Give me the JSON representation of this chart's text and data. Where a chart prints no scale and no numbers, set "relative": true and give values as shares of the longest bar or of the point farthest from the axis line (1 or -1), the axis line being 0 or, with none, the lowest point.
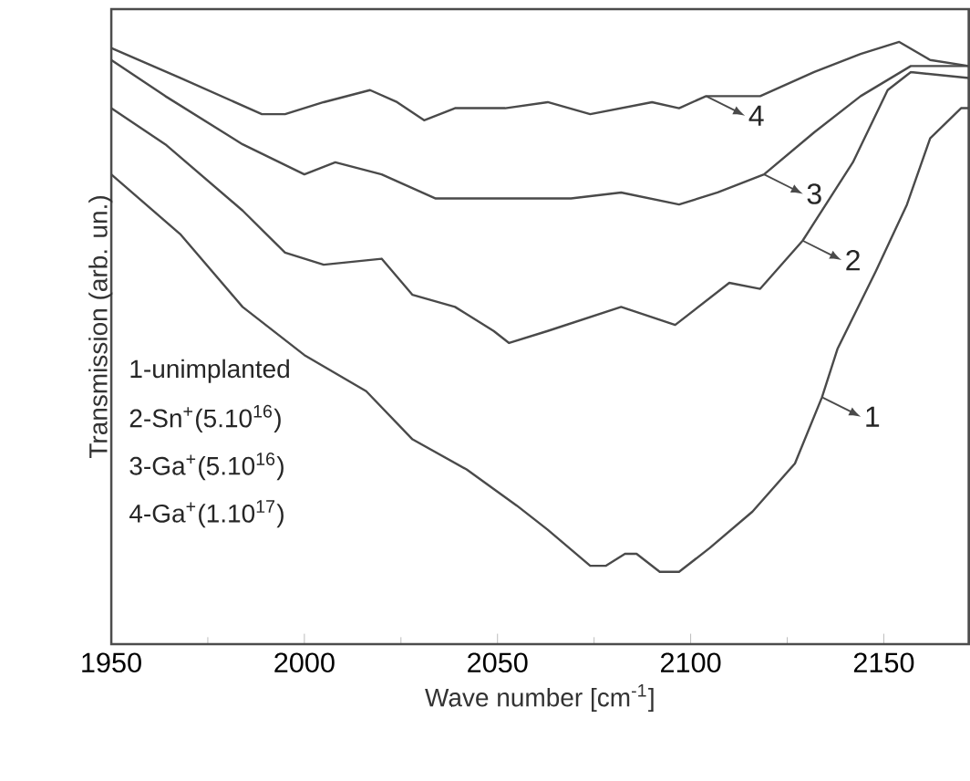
{
  "chart_data": {
    "type": "line",
    "relative": true,
    "xlabel": "Wave number [cm$^{-1}$]",
    "ylabel": "Transmission (arb. un.)",
    "xlim": [
      1950,
      2172
    ],
    "xticks": [
      1950,
      2000,
      2050,
      2100,
      2150
    ],
    "grid": false,
    "legend": "right",
    "marker": "none",
    "line_style": "solid",
    "annotations": [
      "1-unimplanted",
      "2-Sn$^{+}$(5.10$^{16}$)",
      "3-Ga$^{+}$(5.10$^{16}$)",
      "4-Ga$^{+}$(1.10$^{17}$)"
    ],
    "series": [
      {
        "name": "1",
        "color": "#4a4a4a",
        "x": [
          1950,
          1968,
          1984,
          2000,
          2016,
          2028,
          2042,
          2055,
          2063,
          2074,
          2078,
          2083,
          2086,
          2092,
          2097,
          2105,
          2116,
          2127,
          2134,
          2138,
          2148,
          2156,
          2162,
          2170,
          2172
        ],
        "values": [
          0.78,
          0.68,
          0.56,
          0.48,
          0.42,
          0.34,
          0.29,
          0.23,
          0.19,
          0.13,
          0.13,
          0.15,
          0.15,
          0.12,
          0.12,
          0.16,
          0.22,
          0.3,
          0.41,
          0.49,
          0.62,
          0.73,
          0.84,
          0.89,
          0.89
        ]
      },
      {
        "name": "2",
        "color": "#4a4a4a",
        "x": [
          1950,
          1964,
          1984,
          1995,
          2005,
          2020,
          2028,
          2039,
          2049,
          2053,
          2063,
          2082,
          2096,
          2110,
          2118,
          2129,
          2142,
          2151,
          2157,
          2172
        ],
        "values": [
          0.89,
          0.83,
          0.72,
          0.65,
          0.63,
          0.64,
          0.58,
          0.56,
          0.52,
          0.5,
          0.52,
          0.56,
          0.53,
          0.6,
          0.59,
          0.67,
          0.8,
          0.92,
          0.95,
          0.94
        ]
      },
      {
        "name": "3",
        "color": "#4a4a4a",
        "x": [
          1950,
          1964,
          1984,
          2000,
          2008,
          2020,
          2034,
          2047,
          2063,
          2069,
          2082,
          2097,
          2107,
          2119,
          2132,
          2144,
          2157,
          2172
        ],
        "values": [
          0.97,
          0.91,
          0.83,
          0.78,
          0.8,
          0.78,
          0.74,
          0.74,
          0.74,
          0.74,
          0.75,
          0.73,
          0.75,
          0.78,
          0.85,
          0.91,
          0.96,
          0.96
        ]
      },
      {
        "name": "4",
        "color": "#4a4a4a",
        "x": [
          1950,
          1968,
          1989,
          1995,
          2005,
          2017,
          2024,
          2031,
          2039,
          2052,
          2063,
          2074,
          2090,
          2097,
          2104,
          2118,
          2132,
          2144,
          2154,
          2162,
          2172
        ],
        "values": [
          0.99,
          0.94,
          0.88,
          0.88,
          0.9,
          0.92,
          0.9,
          0.87,
          0.89,
          0.89,
          0.9,
          0.88,
          0.9,
          0.89,
          0.91,
          0.91,
          0.95,
          0.98,
          1.0,
          0.97,
          0.96
        ]
      }
    ]
  }
}
